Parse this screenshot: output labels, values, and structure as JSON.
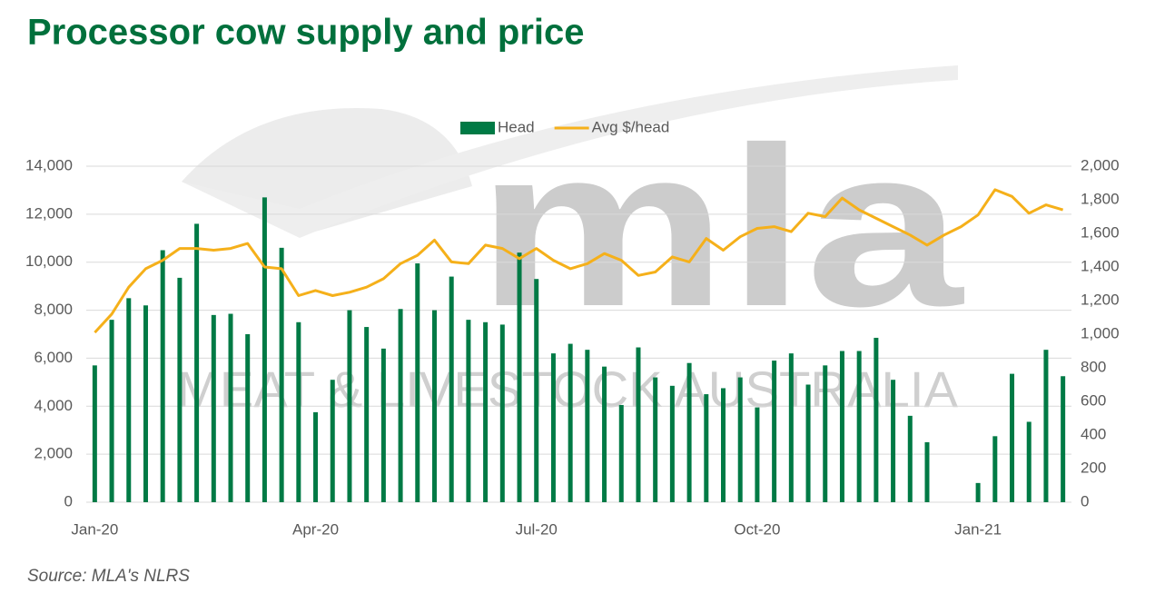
{
  "chart_data": {
    "type": "bar_line",
    "title": "Processor cow supply and price",
    "source": "Source: MLA's NLRS",
    "watermark": {
      "logo": "mla",
      "text": "MEAT & LIVESTOCK AUSTRALIA"
    },
    "categories": [
      "Jan-20",
      null,
      null,
      null,
      null,
      null,
      null,
      null,
      null,
      null,
      null,
      null,
      null,
      "Apr-20",
      null,
      null,
      null,
      null,
      null,
      null,
      null,
      null,
      null,
      null,
      null,
      null,
      "Jul-20",
      null,
      null,
      null,
      null,
      null,
      null,
      null,
      null,
      null,
      null,
      null,
      null,
      "Oct-20",
      null,
      null,
      null,
      null,
      null,
      null,
      null,
      null,
      null,
      null,
      null,
      null,
      "Jan-21",
      null,
      null,
      null,
      null,
      null
    ],
    "series": [
      {
        "name": "Head",
        "type": "bar",
        "color": "#007a45",
        "values": [
          5700,
          7600,
          8500,
          8200,
          10500,
          9350,
          11600,
          7800,
          7850,
          7000,
          12700,
          10600,
          7500,
          3750,
          5100,
          8000,
          7300,
          6400,
          8050,
          9950,
          8000,
          9400,
          7600,
          7500,
          7400,
          10400,
          9300,
          6200,
          6600,
          6350,
          5650,
          4050,
          6450,
          5200,
          4850,
          5800,
          4500,
          4750,
          5200,
          3950,
          5900,
          6200,
          4900,
          5700,
          6300,
          6300,
          6850,
          5100,
          3600,
          2500,
          null,
          null,
          800,
          2750,
          5350,
          3350,
          6350,
          5250
        ]
      },
      {
        "name": "Avg $/head",
        "type": "line",
        "axis": "y2",
        "color": "#f5b01a",
        "values": [
          1010,
          1120,
          1280,
          1390,
          1440,
          1510,
          1510,
          1500,
          1510,
          1540,
          1400,
          1390,
          1230,
          1260,
          1230,
          1250,
          1280,
          1330,
          1420,
          1470,
          1560,
          1430,
          1420,
          1530,
          1510,
          1450,
          1510,
          1440,
          1390,
          1420,
          1480,
          1440,
          1350,
          1370,
          1460,
          1430,
          1570,
          1500,
          1580,
          1630,
          1640,
          1610,
          1720,
          1700,
          1810,
          1740,
          1690,
          1640,
          1590,
          1530,
          1590,
          1640,
          1710,
          1860,
          1820,
          1720,
          1770,
          1740
        ]
      }
    ],
    "ylim": [
      0,
      14000
    ],
    "yticks": [
      0,
      {
        "value": 2000,
        "label": "2,000"
      },
      {
        "value": 4000,
        "label": "4,000"
      },
      {
        "value": 6000,
        "label": "6,000"
      },
      {
        "value": 8000,
        "label": "8,000"
      },
      {
        "value": 10000,
        "label": "10,000"
      },
      {
        "value": 12000,
        "label": "12,000"
      },
      {
        "value": 14000,
        "label": "14,000"
      }
    ],
    "y2lim": [
      0,
      2000
    ],
    "y2ticks": [
      0,
      200,
      400,
      600,
      800,
      {
        "value": 1000,
        "label": "1,000"
      },
      {
        "value": 1200,
        "label": "1,200"
      },
      {
        "value": 1400,
        "label": "1,400"
      },
      {
        "value": 1600,
        "label": "1,600"
      },
      {
        "value": 1800,
        "label": "1,800"
      },
      {
        "value": 2000,
        "label": "2,000"
      }
    ],
    "grid": true,
    "legend": "top"
  }
}
